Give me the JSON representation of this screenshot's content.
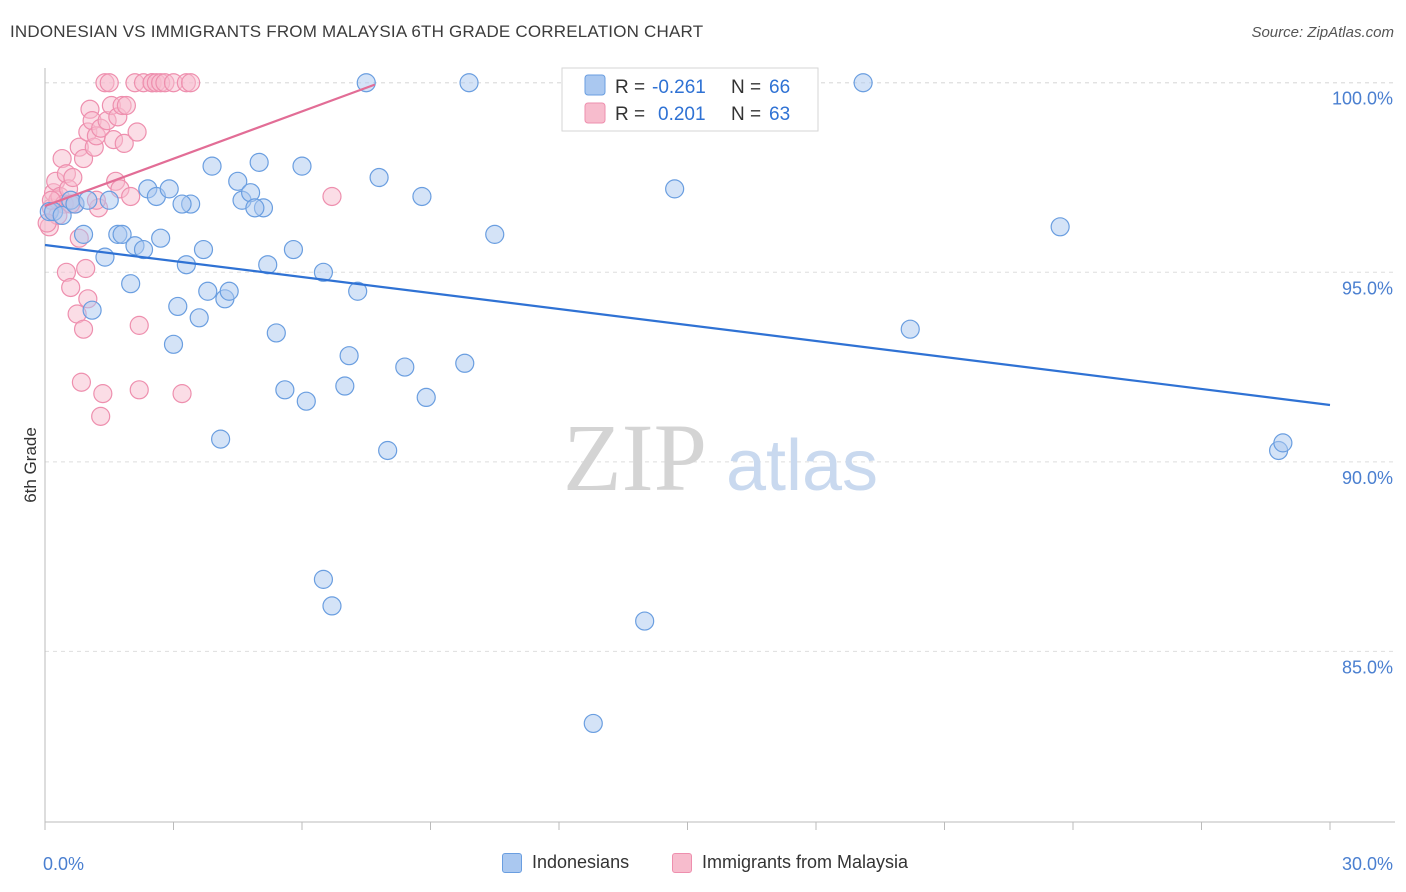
{
  "header": {
    "title": "INDONESIAN VS IMMIGRANTS FROM MALAYSIA 6TH GRADE CORRELATION CHART",
    "source": "Source: ZipAtlas.com"
  },
  "watermark": {
    "zip": "ZIP",
    "atlas": "atlas"
  },
  "legend_box": {
    "rows": [
      {
        "r_label": "R =",
        "r_value": "-0.261",
        "n_label": "N =",
        "n_value": "66"
      },
      {
        "r_label": "R =",
        "r_value": "0.201",
        "n_label": "N =",
        "n_value": "63"
      }
    ]
  },
  "bottom_legend": {
    "items": [
      {
        "label": "Indonesians"
      },
      {
        "label": "Immigrants from Malaysia"
      }
    ]
  },
  "colors": {
    "blue_fill": "#aac8f0",
    "blue_stroke": "#6a9ee0",
    "blue_line": "#2f72d4",
    "pink_fill": "#f7bccd",
    "pink_stroke": "#ee8fae",
    "pink_line": "#e26d96",
    "axis_text": "#4a7fd0",
    "grid": "#dedede"
  },
  "chart_data": {
    "type": "scatter",
    "title": "INDONESIAN VS IMMIGRANTS FROM MALAYSIA 6TH GRADE CORRELATION CHART",
    "xlabel": "",
    "ylabel": "6th Grade",
    "xlim": [
      0,
      30
    ],
    "ylim": [
      80.5,
      100.6
    ],
    "x_tick_labels": [
      "0.0%",
      "30.0%"
    ],
    "y_ticks": [
      85,
      90,
      95,
      100
    ],
    "y_tick_labels": [
      "85.0%",
      "90.0%",
      "95.0%",
      "100.0%"
    ],
    "grid": true,
    "legend_position": "top-center",
    "series": [
      {
        "name": "Indonesians",
        "r": -0.261,
        "n": 66,
        "trend": {
          "x": [
            0,
            30
          ],
          "y": [
            95.72,
            91.5
          ]
        },
        "points": [
          [
            0.1,
            96.6
          ],
          [
            0.2,
            96.6
          ],
          [
            0.4,
            96.5
          ],
          [
            0.6,
            96.9
          ],
          [
            0.9,
            96.0
          ],
          [
            1.1,
            94.0
          ],
          [
            1.4,
            95.4
          ],
          [
            1.5,
            96.9
          ],
          [
            1.7,
            96.0
          ],
          [
            1.8,
            96.0
          ],
          [
            2.0,
            94.7
          ],
          [
            2.1,
            95.7
          ],
          [
            2.3,
            95.6
          ],
          [
            2.4,
            97.2
          ],
          [
            2.6,
            97.0
          ],
          [
            2.7,
            95.9
          ],
          [
            2.9,
            97.2
          ],
          [
            3.0,
            93.1
          ],
          [
            3.1,
            94.1
          ],
          [
            3.3,
            95.2
          ],
          [
            3.4,
            96.8
          ],
          [
            3.6,
            93.8
          ],
          [
            3.7,
            95.6
          ],
          [
            3.8,
            94.5
          ],
          [
            3.9,
            97.8
          ],
          [
            4.1,
            90.6
          ],
          [
            4.2,
            94.3
          ],
          [
            4.3,
            94.5
          ],
          [
            4.5,
            97.4
          ],
          [
            4.6,
            96.9
          ],
          [
            4.8,
            97.1
          ],
          [
            5.0,
            97.9
          ],
          [
            5.1,
            96.7
          ],
          [
            5.2,
            95.2
          ],
          [
            5.4,
            93.4
          ],
          [
            5.6,
            91.9
          ],
          [
            5.8,
            95.6
          ],
          [
            6.0,
            97.8
          ],
          [
            6.1,
            91.6
          ],
          [
            6.5,
            86.9
          ],
          [
            6.5,
            95.0
          ],
          [
            6.7,
            86.2
          ],
          [
            7.0,
            92.0
          ],
          [
            7.1,
            92.8
          ],
          [
            7.3,
            94.5
          ],
          [
            7.5,
            100.0
          ],
          [
            7.8,
            97.5
          ],
          [
            8.0,
            90.3
          ],
          [
            8.4,
            92.5
          ],
          [
            8.8,
            97.0
          ],
          [
            8.9,
            91.7
          ],
          [
            9.8,
            92.6
          ],
          [
            9.9,
            100.0
          ],
          [
            10.5,
            96.0
          ],
          [
            12.8,
            83.1
          ],
          [
            14.0,
            85.8
          ],
          [
            14.7,
            97.2
          ],
          [
            19.1,
            100.0
          ],
          [
            20.2,
            93.5
          ],
          [
            23.7,
            96.2
          ],
          [
            28.8,
            90.3
          ],
          [
            28.9,
            90.5
          ],
          [
            0.7,
            96.8
          ],
          [
            1.0,
            96.9
          ],
          [
            3.2,
            96.8
          ],
          [
            4.9,
            96.7
          ]
        ]
      },
      {
        "name": "Immigrants from Malaysia",
        "r": 0.201,
        "n": 63,
        "trend": {
          "x": [
            0,
            7.7
          ],
          "y": [
            96.75,
            99.95
          ]
        },
        "points": [
          [
            0.1,
            96.2
          ],
          [
            0.15,
            96.7
          ],
          [
            0.2,
            97.1
          ],
          [
            0.25,
            97.4
          ],
          [
            0.3,
            96.9
          ],
          [
            0.35,
            97.0
          ],
          [
            0.4,
            98.0
          ],
          [
            0.45,
            96.8
          ],
          [
            0.5,
            97.6
          ],
          [
            0.5,
            95.0
          ],
          [
            0.55,
            97.2
          ],
          [
            0.6,
            94.6
          ],
          [
            0.65,
            97.5
          ],
          [
            0.7,
            96.8
          ],
          [
            0.75,
            93.9
          ],
          [
            0.8,
            95.9
          ],
          [
            0.8,
            98.3
          ],
          [
            0.85,
            92.1
          ],
          [
            0.9,
            93.5
          ],
          [
            0.9,
            98.0
          ],
          [
            0.95,
            95.1
          ],
          [
            1.0,
            94.3
          ],
          [
            1.0,
            98.7
          ],
          [
            1.05,
            99.3
          ],
          [
            1.1,
            99.0
          ],
          [
            1.15,
            98.3
          ],
          [
            1.2,
            98.6
          ],
          [
            1.25,
            96.7
          ],
          [
            1.3,
            98.8
          ],
          [
            1.3,
            91.2
          ],
          [
            1.35,
            91.8
          ],
          [
            1.4,
            100.0
          ],
          [
            1.45,
            99.0
          ],
          [
            1.5,
            100.0
          ],
          [
            1.55,
            99.4
          ],
          [
            1.6,
            98.5
          ],
          [
            1.65,
            97.4
          ],
          [
            1.7,
            99.1
          ],
          [
            1.75,
            97.2
          ],
          [
            1.8,
            99.4
          ],
          [
            1.85,
            98.4
          ],
          [
            1.9,
            99.4
          ],
          [
            2.0,
            97.0
          ],
          [
            2.1,
            100.0
          ],
          [
            2.15,
            98.7
          ],
          [
            2.2,
            93.6
          ],
          [
            2.2,
            91.9
          ],
          [
            2.3,
            100.0
          ],
          [
            2.5,
            100.0
          ],
          [
            2.5,
            100.0
          ],
          [
            2.6,
            100.0
          ],
          [
            2.7,
            100.0
          ],
          [
            2.8,
            100.0
          ],
          [
            3.0,
            100.0
          ],
          [
            3.2,
            91.8
          ],
          [
            3.3,
            100.0
          ],
          [
            3.4,
            100.0
          ],
          [
            6.7,
            97.0
          ],
          [
            0.3,
            96.5
          ],
          [
            0.6,
            96.8
          ],
          [
            1.2,
            96.9
          ],
          [
            0.15,
            96.9
          ],
          [
            0.05,
            96.3
          ]
        ]
      }
    ]
  }
}
